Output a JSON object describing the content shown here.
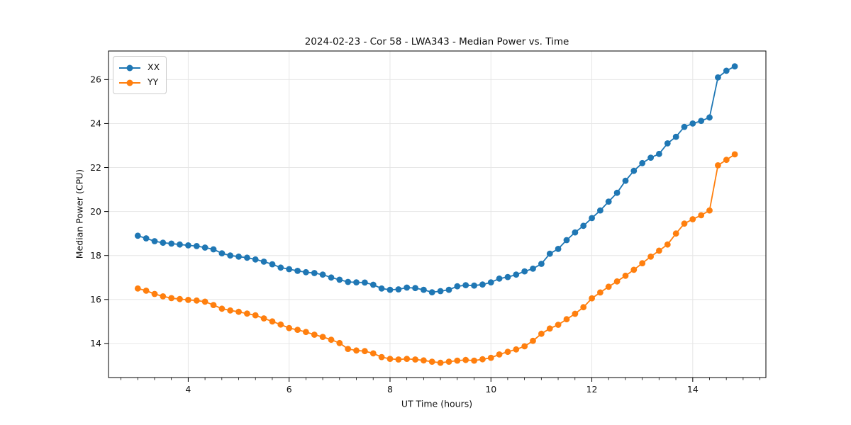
{
  "figure": {
    "background": "#ffffff",
    "text_color": "#111111",
    "spine_color": "#000000"
  },
  "chart_data": {
    "type": "line",
    "title": "2024-02-23 - Cor 58 - LWA343 - Median Power vs. Time",
    "xlabel": "UT Time (hours)",
    "ylabel": "Median Power (CPU)",
    "xlim": [
      2.42,
      15.45
    ],
    "ylim": [
      12.45,
      27.3
    ],
    "x_major_ticks": [
      4,
      6,
      8,
      10,
      12,
      14
    ],
    "x_minor_tick_step": 0.3333,
    "y_major_ticks": [
      14,
      16,
      18,
      20,
      22,
      24,
      26
    ],
    "grid": true,
    "grid_color": "#e6e6e6",
    "legend_position": "upper-left",
    "marker": "circle",
    "x": [
      3.0,
      3.167,
      3.333,
      3.5,
      3.667,
      3.833,
      4.0,
      4.167,
      4.333,
      4.5,
      4.667,
      4.833,
      5.0,
      5.167,
      5.333,
      5.5,
      5.667,
      5.833,
      6.0,
      6.167,
      6.333,
      6.5,
      6.667,
      6.833,
      7.0,
      7.167,
      7.333,
      7.5,
      7.667,
      7.833,
      8.0,
      8.167,
      8.333,
      8.5,
      8.667,
      8.833,
      9.0,
      9.167,
      9.333,
      9.5,
      9.667,
      9.833,
      10.0,
      10.167,
      10.333,
      10.5,
      10.667,
      10.833,
      11.0,
      11.167,
      11.333,
      11.5,
      11.667,
      11.833,
      12.0,
      12.167,
      12.333,
      12.5,
      12.667,
      12.833,
      13.0,
      13.167,
      13.333,
      13.5,
      13.667,
      13.833,
      14.0,
      14.167,
      14.333,
      14.5,
      14.667,
      14.833
    ],
    "series": [
      {
        "name": "XX",
        "color": "#1f77b4",
        "values": [
          18.9,
          18.78,
          18.65,
          18.58,
          18.54,
          18.5,
          18.46,
          18.43,
          18.36,
          18.28,
          18.1,
          18.0,
          17.95,
          17.9,
          17.82,
          17.72,
          17.6,
          17.45,
          17.38,
          17.3,
          17.24,
          17.2,
          17.13,
          17.0,
          16.9,
          16.8,
          16.78,
          16.77,
          16.67,
          16.5,
          16.44,
          16.46,
          16.54,
          16.52,
          16.44,
          16.33,
          16.38,
          16.44,
          16.6,
          16.65,
          16.63,
          16.68,
          16.78,
          16.95,
          17.02,
          17.13,
          17.28,
          17.4,
          17.62,
          18.08,
          18.3,
          18.7,
          19.05,
          19.35,
          19.7,
          20.05,
          20.45,
          20.85,
          21.4,
          21.85,
          22.2,
          22.45,
          22.62,
          23.1,
          23.4,
          23.85,
          24.0,
          24.12,
          24.28,
          26.1,
          26.4,
          26.6
        ]
      },
      {
        "name": "YY",
        "color": "#ff7f0e",
        "values": [
          16.5,
          16.4,
          16.25,
          16.14,
          16.06,
          16.02,
          15.98,
          15.95,
          15.9,
          15.75,
          15.58,
          15.5,
          15.44,
          15.36,
          15.28,
          15.14,
          15.0,
          14.86,
          14.7,
          14.62,
          14.52,
          14.4,
          14.3,
          14.17,
          14.02,
          13.75,
          13.68,
          13.65,
          13.55,
          13.38,
          13.3,
          13.27,
          13.3,
          13.27,
          13.23,
          13.17,
          13.12,
          13.17,
          13.22,
          13.25,
          13.22,
          13.28,
          13.35,
          13.5,
          13.62,
          13.73,
          13.87,
          14.12,
          14.44,
          14.68,
          14.85,
          15.1,
          15.35,
          15.65,
          16.05,
          16.32,
          16.58,
          16.82,
          17.08,
          17.35,
          17.65,
          17.95,
          18.22,
          18.5,
          19.0,
          19.45,
          19.65,
          19.83,
          20.05,
          22.1,
          22.35,
          22.6
        ]
      }
    ]
  }
}
